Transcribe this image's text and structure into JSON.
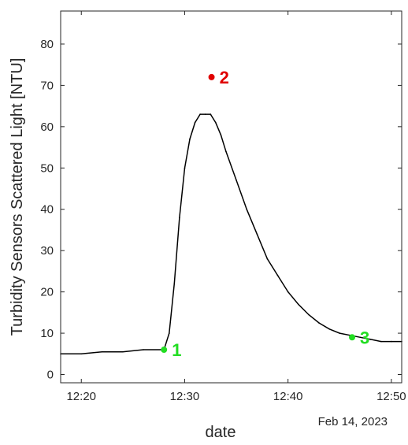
{
  "chart_data": {
    "type": "line",
    "title": "",
    "xlabel": "date",
    "ylabel": "Turbidity Sensors Scattered Light [NTU]",
    "x_date_label": "Feb 14, 2023",
    "xlim": [
      "12:18",
      "12:51"
    ],
    "ylim": [
      -2,
      88
    ],
    "x_ticks": [
      "12:20",
      "12:30",
      "12:40",
      "12:50"
    ],
    "y_ticks": [
      0,
      10,
      20,
      30,
      40,
      50,
      60,
      70,
      80
    ],
    "grid": false,
    "line_color": "#000000",
    "series": [
      {
        "x": [
          "12:18",
          "12:20",
          "12:22",
          "12:24",
          "12:26",
          "12:28",
          "12:28.5",
          "12:29",
          "12:29.5",
          "12:30",
          "12:30.5",
          "12:31",
          "12:31.5",
          "12:32",
          "12:32.5",
          "12:33",
          "12:33.5",
          "12:34",
          "12:35",
          "12:36",
          "12:37",
          "12:38",
          "12:39",
          "12:40",
          "12:41",
          "12:42",
          "12:43",
          "12:44",
          "12:45",
          "12:46",
          "12:47",
          "12:48",
          "12:49",
          "12:50",
          "12:51"
        ],
        "y": [
          5,
          5,
          5.5,
          5.5,
          6,
          6,
          10,
          22,
          38,
          50,
          57,
          61,
          63,
          63,
          63,
          61,
          58,
          54,
          47,
          40,
          34,
          28,
          24,
          20,
          17,
          14.5,
          12.5,
          11,
          10,
          9.5,
          9,
          8.5,
          8,
          8,
          8
        ]
      }
    ],
    "annotations": [
      {
        "label": "1",
        "x": "12:28",
        "y": 6,
        "color": "#22dd22"
      },
      {
        "label": "2",
        "x": "12:32.6",
        "y": 72,
        "color": "#e00000"
      },
      {
        "label": "3",
        "x": "12:46.2",
        "y": 9,
        "color": "#22dd22"
      }
    ]
  }
}
